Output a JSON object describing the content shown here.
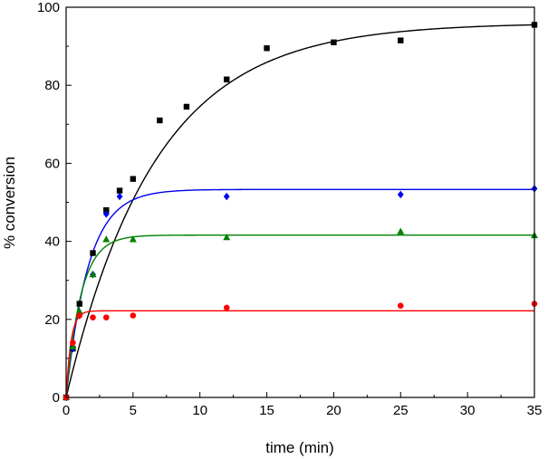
{
  "chart_data": {
    "type": "scatter",
    "xlabel": "time (min)",
    "ylabel": "% conversion",
    "xlim": [
      0,
      35
    ],
    "ylim": [
      0,
      100
    ],
    "xticks": [
      0,
      5,
      10,
      15,
      20,
      25,
      30,
      35
    ],
    "yticks": [
      0,
      20,
      40,
      60,
      80,
      100
    ],
    "grid": false,
    "series": [
      {
        "marker": "square",
        "color": "#000000",
        "x": [
          0,
          0.5,
          1,
          2,
          3,
          4,
          5,
          7,
          9,
          12,
          15,
          20,
          25,
          35
        ],
        "y": [
          0,
          12.5,
          24,
          37,
          48,
          53,
          56,
          71,
          74.5,
          81.5,
          89.5,
          91,
          91.5,
          95.5
        ],
        "fit": {
          "kind": "first-order",
          "plateau": 96,
          "rate": 0.15
        }
      },
      {
        "marker": "diamond",
        "color": "#0000ee",
        "x": [
          0,
          0.5,
          1,
          2,
          3,
          4,
          12,
          25,
          35
        ],
        "y": [
          0,
          12.5,
          21,
          31.5,
          47,
          51.5,
          51.5,
          52,
          53.5
        ],
        "fit": {
          "kind": "first-order",
          "plateau": 53.3,
          "rate": 0.6
        }
      },
      {
        "marker": "triangle",
        "color": "#008000",
        "x": [
          0,
          0.5,
          1,
          2,
          3,
          5,
          12,
          25,
          35
        ],
        "y": [
          0,
          13,
          22,
          31.5,
          40.5,
          40.5,
          41,
          42.5,
          41.5
        ],
        "fit": {
          "kind": "first-order",
          "plateau": 41.6,
          "rate": 0.9
        }
      },
      {
        "marker": "circle",
        "color": "#ff0000",
        "x": [
          0,
          0.5,
          1,
          2,
          3,
          5,
          12,
          25,
          35
        ],
        "y": [
          0,
          14,
          21,
          20.5,
          20.5,
          21,
          23,
          23.5,
          24
        ],
        "fit": {
          "kind": "first-order",
          "plateau": 22.2,
          "rate": 2.8
        }
      }
    ]
  }
}
